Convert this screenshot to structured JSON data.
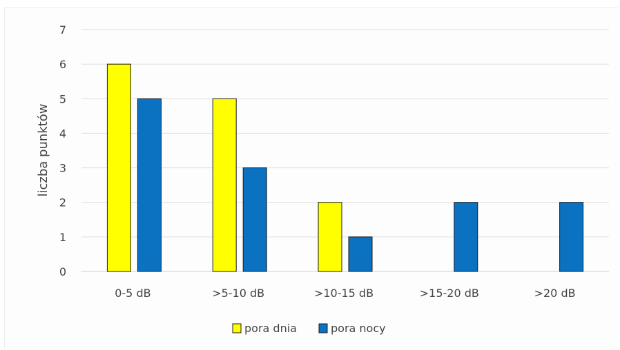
{
  "chart_data": {
    "type": "bar",
    "title": "",
    "xlabel": "",
    "ylabel": "liczba punktów",
    "categories": [
      "0-5 dB",
      ">5-10 dB",
      ">10-15 dB",
      ">15-20 dB",
      ">20 dB"
    ],
    "series": [
      {
        "name": "pora dnia",
        "values": [
          6,
          5,
          2,
          0,
          0
        ],
        "color": "#ffff00"
      },
      {
        "name": "pora nocy",
        "values": [
          5,
          3,
          1,
          2,
          2
        ],
        "color": "#0b72c2"
      }
    ],
    "ylim": [
      0,
      7
    ],
    "yticks": [
      0,
      1,
      2,
      3,
      4,
      5,
      6,
      7
    ],
    "grid": true,
    "legend_position": "bottom"
  }
}
